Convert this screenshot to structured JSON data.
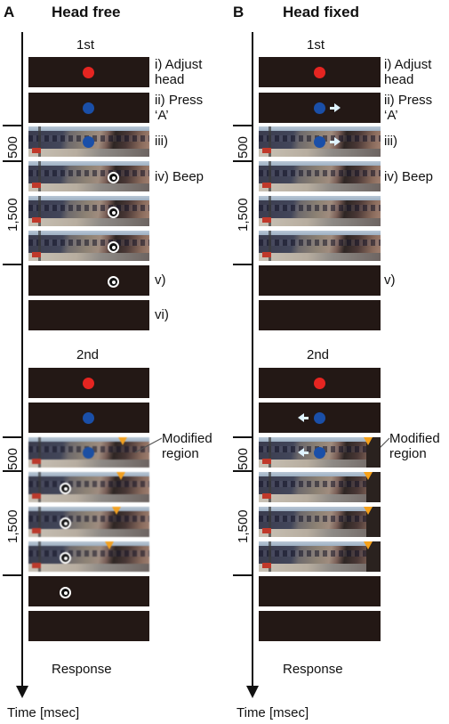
{
  "panels": [
    {
      "letter": "A",
      "title": "Head free",
      "trial1_label": "1st",
      "trial2_label": "2nd",
      "steps": {
        "i": "i) Adjust head",
        "ii": "ii) Press ‘A’",
        "iii": "iii)",
        "iv": "iv) Beep",
        "v": "v)",
        "vi": "vi)"
      },
      "modified_region": "Modified region",
      "response": "Response",
      "time_axis": "Time [msec]",
      "durations": [
        "500",
        "1,500"
      ]
    },
    {
      "letter": "B",
      "title": "Head fixed",
      "trial1_label": "1st",
      "trial2_label": "2nd",
      "steps": {
        "i": "i) Adjust head",
        "ii": "ii) Press ‘A’",
        "iii": "iii)",
        "iv": "iv) Beep",
        "v": "v)"
      },
      "modified_region": "Modified region",
      "response": "Response",
      "time_axis": "Time [msec]",
      "durations": [
        "500",
        "1,500"
      ]
    }
  ],
  "colors": {
    "frame_background": "#231815",
    "fixation_red": "#e52521",
    "fixation_blue": "#1a4fa8",
    "modified_marker": "#f5a01a"
  }
}
